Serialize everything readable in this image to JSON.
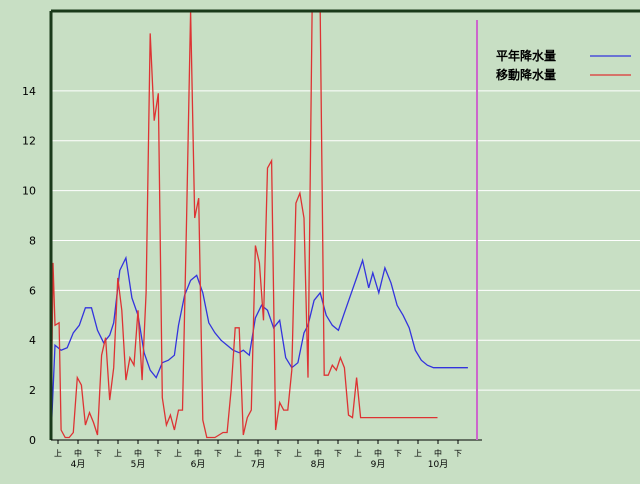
{
  "chart_data": {
    "type": "line",
    "title": "",
    "xlabel": "",
    "ylabel": "",
    "ylim": [
      0,
      17.2
    ],
    "y_ticks": [
      0,
      2,
      4,
      6,
      8,
      10,
      12,
      14
    ],
    "grid": true,
    "legend_position": "top-right",
    "x_tick_labels": [
      "上",
      "中",
      "下",
      "上",
      "中",
      "下",
      "上",
      "中",
      "下",
      "上",
      "中",
      "下",
      "上",
      "中",
      "下",
      "上",
      "中",
      "下",
      "上",
      "中",
      "下"
    ],
    "month_labels": [
      "4月",
      "5月",
      "6月",
      "7月",
      "8月",
      "9月",
      "10月"
    ],
    "series": [
      {
        "name": "平年降水量",
        "color": "#3333dd",
        "x": [
          0,
          2,
          5,
          8,
          11,
          14,
          17,
          20,
          23,
          26,
          29,
          31,
          34,
          37,
          40,
          43,
          46,
          49,
          52,
          55,
          58,
          61,
          63,
          66,
          69,
          72,
          75,
          78,
          81,
          84,
          87,
          90,
          93,
          95,
          98,
          101,
          104,
          107,
          110,
          113,
          116,
          119,
          122,
          125,
          127,
          130,
          133,
          136,
          139,
          142,
          145,
          148,
          151,
          154,
          157,
          159,
          162,
          165,
          168,
          171,
          174,
          177,
          180,
          183,
          186,
          189,
          191,
          194,
          197,
          200,
          203,
          206
        ],
        "values": [
          0.1,
          3.8,
          3.6,
          3.7,
          4.3,
          4.6,
          5.3,
          5.3,
          4.4,
          3.9,
          4.2,
          4.7,
          6.8,
          7.3,
          5.7,
          5.0,
          3.5,
          2.8,
          2.5,
          3.1,
          3.2,
          3.4,
          4.6,
          5.8,
          6.4,
          6.6,
          5.9,
          4.7,
          4.3,
          4.0,
          3.8,
          3.6,
          3.5,
          3.6,
          3.4,
          4.9,
          5.4,
          5.2,
          4.5,
          4.8,
          3.3,
          2.9,
          3.1,
          4.3,
          4.6,
          5.6,
          5.9,
          5.0,
          4.6,
          4.4,
          5.1,
          5.8,
          6.5,
          7.2,
          6.1,
          6.7,
          5.9,
          6.9,
          6.3,
          5.4,
          5.0,
          4.5,
          3.6,
          3.2,
          3.0,
          2.9,
          2.9,
          2.9,
          2.9,
          2.9,
          2.9,
          2.9
        ]
      },
      {
        "name": "移動降水量",
        "color": "#dd3333",
        "x": [
          0,
          1,
          2,
          4,
          5,
          7,
          9,
          11,
          13,
          15,
          17,
          19,
          21,
          23,
          25,
          27,
          29,
          31,
          33,
          35,
          37,
          39,
          41,
          43,
          45,
          47,
          49,
          51,
          53,
          55,
          57,
          59,
          61,
          63,
          65,
          67,
          69,
          71,
          73,
          75,
          77,
          79,
          81,
          83,
          85,
          87,
          89,
          91,
          93,
          95,
          97,
          99,
          101,
          103,
          105,
          107,
          109,
          111,
          113,
          115,
          117,
          119,
          121,
          123,
          125,
          127,
          129,
          131,
          133,
          135,
          137,
          139,
          141,
          143,
          145,
          147,
          149,
          151,
          153,
          155,
          157,
          159,
          161,
          163,
          165,
          167,
          169,
          171,
          173,
          175,
          177,
          179,
          181,
          183,
          185,
          187,
          189,
          191
        ],
        "values": [
          0.1,
          7.1,
          4.6,
          4.7,
          0.4,
          0.1,
          0.1,
          0.3,
          2.5,
          2.2,
          0.6,
          1.1,
          0.7,
          0.2,
          3.4,
          4.1,
          1.6,
          2.9,
          6.5,
          5.2,
          2.4,
          3.3,
          3.0,
          5.2,
          2.4,
          5.9,
          16.3,
          12.8,
          13.9,
          1.7,
          0.6,
          1.0,
          0.4,
          1.2,
          1.2,
          8.9,
          17.2,
          8.9,
          9.7,
          0.8,
          0.1,
          0.1,
          0.1,
          0.2,
          0.3,
          0.3,
          2.0,
          4.5,
          4.5,
          0.2,
          0.9,
          1.2,
          7.8,
          7.1,
          4.8,
          10.9,
          11.2,
          0.4,
          1.5,
          1.2,
          1.2,
          2.8,
          9.5,
          9.9,
          8.9,
          2.5,
          17.2,
          17.2,
          17.2,
          2.6,
          2.6,
          3.0,
          2.8,
          3.3,
          2.9,
          1.0,
          0.9,
          2.5,
          0.9,
          0.9,
          0.9,
          0.9,
          0.9,
          0.9,
          0.9,
          0.9,
          0.9,
          0.9,
          0.9,
          0.9,
          0.9,
          0.9,
          0.9,
          0.9,
          0.9,
          0.9,
          0.9,
          0.9
        ]
      }
    ]
  }
}
